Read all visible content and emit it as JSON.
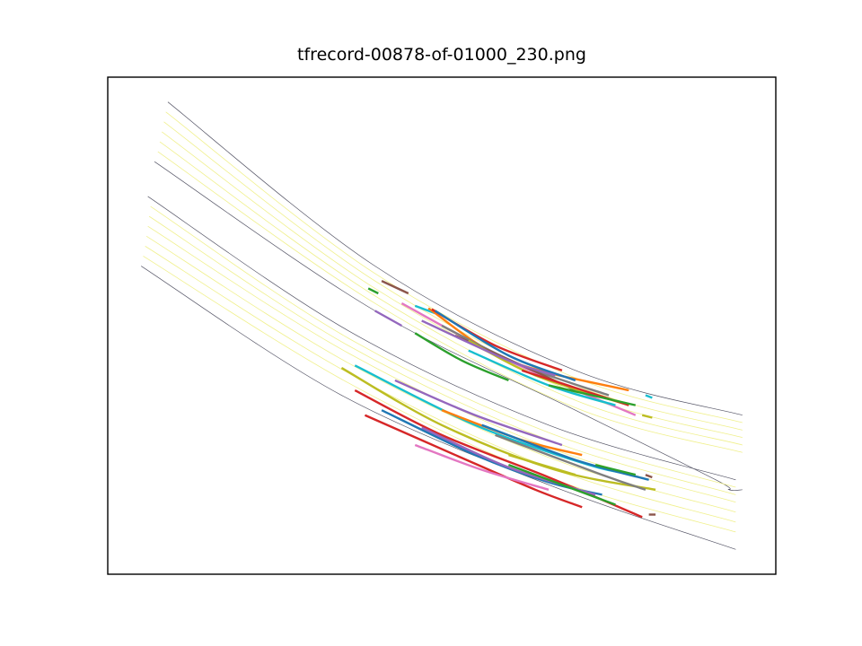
{
  "title": "tfrecord-00878-of-01000_230.png",
  "chart_data": {
    "type": "line",
    "title": "tfrecord-00878-of-01000_230.png",
    "xlabel": "",
    "ylabel": "",
    "grid": false,
    "legend": "none",
    "axes_visible": false,
    "xlim": [
      0,
      100
    ],
    "ylim": [
      0,
      100
    ],
    "road_edges": [
      {
        "color": "#555566",
        "points": [
          [
            9,
            95
          ],
          [
            40,
            62
          ],
          [
            70,
            41
          ],
          [
            95,
            32
          ]
        ]
      },
      {
        "color": "#555566",
        "points": [
          [
            7,
            83
          ],
          [
            40,
            53
          ],
          [
            70,
            33
          ],
          [
            91,
            19
          ],
          [
            93,
            17
          ],
          [
            95,
            17
          ]
        ]
      },
      {
        "color": "#555566",
        "points": [
          [
            6,
            76
          ],
          [
            36,
            49
          ],
          [
            66,
            30
          ],
          [
            94,
            19
          ]
        ]
      },
      {
        "color": "#555566",
        "points": [
          [
            5,
            62
          ],
          [
            35,
            36
          ],
          [
            66,
            18
          ],
          [
            94,
            5
          ]
        ]
      }
    ],
    "lane_lines": [
      {
        "color": "#f0f08c",
        "points": [
          [
            8.7,
            93
          ],
          [
            40,
            60.5
          ],
          [
            70,
            39.5
          ],
          [
            95,
            30.5
          ]
        ]
      },
      {
        "color": "#f0f08c",
        "points": [
          [
            8.4,
            91
          ],
          [
            40,
            59
          ],
          [
            70,
            38
          ],
          [
            95,
            29
          ]
        ]
      },
      {
        "color": "#f0f08c",
        "points": [
          [
            8.1,
            89
          ],
          [
            40,
            57.5
          ],
          [
            70,
            36.5
          ],
          [
            95,
            27.5
          ]
        ]
      },
      {
        "color": "#f0f08c",
        "points": [
          [
            7.8,
            87
          ],
          [
            40,
            56
          ],
          [
            70,
            35
          ],
          [
            95,
            26
          ]
        ]
      },
      {
        "color": "#f0f08c",
        "points": [
          [
            7.5,
            85
          ],
          [
            40,
            54.5
          ],
          [
            70,
            33.5
          ],
          [
            95,
            24.5
          ]
        ]
      },
      {
        "color": "#f0f08c",
        "points": [
          [
            6.4,
            74
          ],
          [
            36,
            47.5
          ],
          [
            66,
            28.5
          ],
          [
            94,
            17.5
          ]
        ]
      },
      {
        "color": "#f0f08c",
        "points": [
          [
            6.2,
            72
          ],
          [
            36,
            46
          ],
          [
            66,
            27
          ],
          [
            94,
            16
          ]
        ]
      },
      {
        "color": "#f0f08c",
        "points": [
          [
            6.0,
            70
          ],
          [
            36,
            44.5
          ],
          [
            66,
            25.5
          ],
          [
            94,
            14.5
          ]
        ]
      },
      {
        "color": "#f0f08c",
        "points": [
          [
            5.8,
            68
          ],
          [
            36,
            42.5
          ],
          [
            66,
            23.5
          ],
          [
            94,
            12.5
          ]
        ]
      },
      {
        "color": "#f0f08c",
        "points": [
          [
            5.6,
            66
          ],
          [
            36,
            40.5
          ],
          [
            66,
            21.5
          ],
          [
            94,
            10.5
          ]
        ]
      },
      {
        "color": "#f0f08c",
        "points": [
          [
            5.3,
            64
          ],
          [
            36,
            38.5
          ],
          [
            66,
            19.5
          ],
          [
            94,
            8.5
          ]
        ]
      }
    ],
    "tracks": [
      {
        "color": "#8c564b",
        "points": [
          [
            41,
            59
          ],
          [
            45,
            56.5
          ]
        ]
      },
      {
        "color": "#2ca02c",
        "points": [
          [
            39,
            57.5
          ],
          [
            40.5,
            56.5
          ]
        ]
      },
      {
        "color": "#17becf",
        "points": [
          [
            46,
            54
          ],
          [
            49,
            52.5
          ]
        ]
      },
      {
        "color": "#ff7f0e",
        "points": [
          [
            48,
            53.5
          ],
          [
            60,
            43
          ],
          [
            78,
            37
          ]
        ]
      },
      {
        "color": "#d62728",
        "points": [
          [
            48.5,
            53.3
          ],
          [
            58,
            46
          ],
          [
            68,
            41
          ]
        ]
      },
      {
        "color": "#1f77b4",
        "points": [
          [
            49,
            53
          ],
          [
            60,
            44
          ],
          [
            70,
            39
          ]
        ]
      },
      {
        "color": "#9467bd",
        "points": [
          [
            40,
            53
          ],
          [
            44,
            50
          ]
        ]
      },
      {
        "color": "#e377c2",
        "points": [
          [
            44,
            54.5
          ],
          [
            60,
            43
          ],
          [
            79,
            32
          ]
        ]
      },
      {
        "color": "#7f7f7f",
        "points": [
          [
            50,
            50
          ],
          [
            62,
            42
          ],
          [
            75,
            36
          ]
        ]
      },
      {
        "color": "#8c564b",
        "points": [
          [
            52,
            48
          ],
          [
            62,
            42
          ],
          [
            70,
            37
          ]
        ]
      },
      {
        "color": "#bcbd22",
        "points": [
          [
            54,
            47
          ],
          [
            64,
            40
          ],
          [
            78,
            34
          ]
        ]
      },
      {
        "color": "#2ca02c",
        "points": [
          [
            46,
            48.5
          ],
          [
            53,
            43
          ],
          [
            60,
            39
          ]
        ]
      },
      {
        "color": "#17becf",
        "points": [
          [
            54,
            45
          ],
          [
            66,
            38
          ],
          [
            76,
            34
          ]
        ]
      },
      {
        "color": "#9467bd",
        "points": [
          [
            47,
            51
          ],
          [
            60,
            43
          ],
          [
            67,
            40
          ]
        ]
      },
      {
        "color": "#d62728",
        "points": [
          [
            62,
            41
          ],
          [
            78,
            34
          ]
        ]
      },
      {
        "color": "#2ca02c",
        "points": [
          [
            66,
            38
          ],
          [
            79,
            34
          ]
        ]
      },
      {
        "color": "#17becf",
        "points": [
          [
            80.5,
            36
          ],
          [
            81.5,
            35.5
          ]
        ]
      },
      {
        "color": "#bcbd22",
        "points": [
          [
            80,
            32
          ],
          [
            81.5,
            31.5
          ]
        ]
      },
      {
        "color": "#bcbd22",
        "points": [
          [
            35,
            41.5
          ],
          [
            50,
            30
          ],
          [
            67,
            21
          ],
          [
            82,
            17
          ]
        ]
      },
      {
        "color": "#17becf",
        "points": [
          [
            37,
            42
          ],
          [
            55,
            30
          ],
          [
            72,
            22
          ],
          [
            79,
            20
          ]
        ]
      },
      {
        "color": "#9467bd",
        "points": [
          [
            43,
            39
          ],
          [
            55,
            32
          ],
          [
            68,
            26
          ]
        ]
      },
      {
        "color": "#ff7f0e",
        "points": [
          [
            50,
            33
          ],
          [
            62,
            27
          ],
          [
            71,
            24
          ]
        ]
      },
      {
        "color": "#1f77b4",
        "points": [
          [
            56,
            30
          ],
          [
            70,
            23
          ],
          [
            81,
            19
          ]
        ]
      },
      {
        "color": "#7f7f7f",
        "points": [
          [
            58,
            28
          ],
          [
            74,
            20
          ],
          [
            80.5,
            17
          ]
        ]
      },
      {
        "color": "#d62728",
        "points": [
          [
            37,
            37
          ],
          [
            50,
            28
          ],
          [
            66,
            19.5
          ],
          [
            80,
            11.5
          ]
        ]
      },
      {
        "color": "#1f77b4",
        "points": [
          [
            41,
            33
          ],
          [
            55,
            24
          ],
          [
            66,
            18.5
          ],
          [
            74,
            16
          ]
        ]
      },
      {
        "color": "#d62728",
        "points": [
          [
            38.5,
            32
          ],
          [
            52,
            24
          ],
          [
            64,
            17
          ],
          [
            71,
            13.5
          ]
        ]
      },
      {
        "color": "#e377c2",
        "points": [
          [
            46,
            26
          ],
          [
            56,
            21
          ],
          [
            66,
            17
          ]
        ]
      },
      {
        "color": "#9467bd",
        "points": [
          [
            47,
            29.5
          ],
          [
            60,
            21.5
          ],
          [
            73,
            16
          ]
        ]
      },
      {
        "color": "#2ca02c",
        "points": [
          [
            60,
            22
          ],
          [
            72,
            16
          ],
          [
            76,
            14
          ]
        ]
      },
      {
        "color": "#2ca02c",
        "points": [
          [
            73,
            22
          ],
          [
            79,
            20
          ]
        ]
      },
      {
        "color": "#bcbd22",
        "points": [
          [
            60,
            24
          ],
          [
            70,
            20
          ]
        ]
      },
      {
        "color": "#8c564b",
        "points": [
          [
            80.5,
            20
          ],
          [
            81.5,
            19.5
          ]
        ]
      },
      {
        "color": "#8c564b",
        "points": [
          [
            81,
            12
          ],
          [
            82,
            12
          ]
        ]
      }
    ]
  }
}
